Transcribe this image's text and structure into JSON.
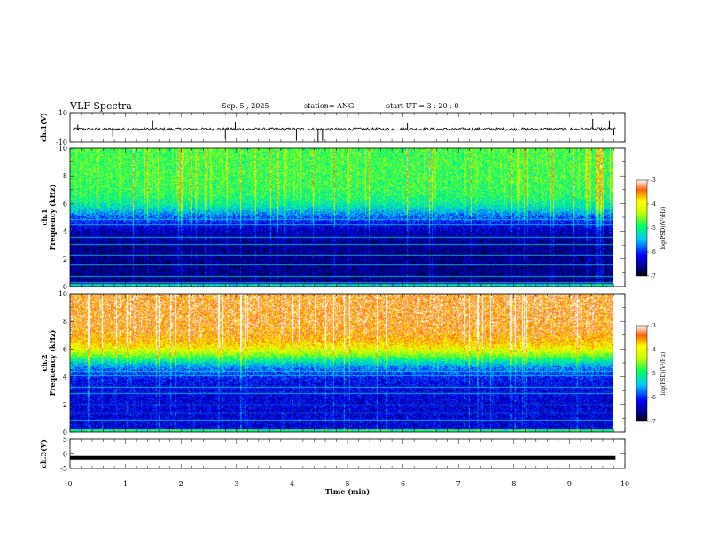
{
  "header": {
    "title": "VLF Spectra",
    "date": "Sep. 5 , 2025",
    "station": "station= ANG",
    "start_ut": "start UT =  3 : 20 : 0"
  },
  "chart_data": [
    {
      "type": "line",
      "name": "ch1-waveform",
      "ylabel": "ch.1(V)",
      "ylim": [
        -10,
        10
      ],
      "yticks": [
        "10",
        "-10"
      ],
      "xlim": [
        0,
        10
      ],
      "baseline": 0,
      "spikes": [
        {
          "t": 0.14,
          "v": 3
        },
        {
          "t": 0.77,
          "v": -5
        },
        {
          "t": 1.49,
          "v": 6
        },
        {
          "t": 2.8,
          "v": -7
        },
        {
          "t": 2.98,
          "v": 5
        },
        {
          "t": 4.08,
          "v": -8
        },
        {
          "t": 4.47,
          "v": -9
        },
        {
          "t": 4.55,
          "v": -8
        },
        {
          "t": 6.08,
          "v": 4
        },
        {
          "t": 9.42,
          "v": 7
        },
        {
          "t": 9.72,
          "v": 6
        },
        {
          "t": 9.8,
          "v": -4
        }
      ]
    },
    {
      "type": "heatmap",
      "name": "ch1-spectrogram",
      "ylabel": "ch.1 Frequency (kHz)",
      "ylim": [
        0,
        10
      ],
      "yticks": [
        "0",
        "2",
        "4",
        "6",
        "8",
        "10"
      ],
      "xlim": [
        0,
        9.8
      ],
      "colorbar": {
        "label": "log(PSD)(V²/Hz)",
        "min": -7,
        "max": -3,
        "ticks": [
          "-3",
          "-4",
          "-5",
          "-6",
          "-7"
        ]
      },
      "level_hi_kHz": -4.8,
      "level_lo_kHz": -6.6,
      "transition_kHz": 5.2,
      "tone_lines_kHz": [
        0.3,
        0.8,
        1.6,
        2.3,
        3.1,
        3.6,
        4.5,
        4.9
      ]
    },
    {
      "type": "heatmap",
      "name": "ch2-spectrogram",
      "ylabel": "ch.2 Frequency (kHz)",
      "ylim": [
        0,
        10
      ],
      "yticks": [
        "0",
        "2",
        "4",
        "6",
        "8",
        "10"
      ],
      "xlim": [
        0,
        9.8
      ],
      "colorbar": {
        "label": "log(PSD)(V²/Hz)",
        "min": -7,
        "max": -3,
        "ticks": [
          "-3",
          "-4",
          "-5",
          "-6",
          "-7"
        ]
      },
      "level_hi_kHz": -3.4,
      "level_lo_kHz": -6.3,
      "transition_kHz": 5.4,
      "tone_lines_kHz": [
        0.9,
        1.4,
        2.0,
        2.8,
        3.3,
        4.1,
        4.4
      ]
    },
    {
      "type": "line",
      "name": "ch3-waveform",
      "ylabel": "ch.3(V)",
      "ylim": [
        -5,
        5
      ],
      "yticks": [
        "5",
        "0",
        "-5"
      ],
      "xlim": [
        0,
        10
      ],
      "baseline": -1.3
    }
  ],
  "xaxis": {
    "label": "Time (min)",
    "ticks": [
      "0",
      "1",
      "2",
      "3",
      "4",
      "5",
      "6",
      "7",
      "8",
      "9",
      "10"
    ]
  }
}
